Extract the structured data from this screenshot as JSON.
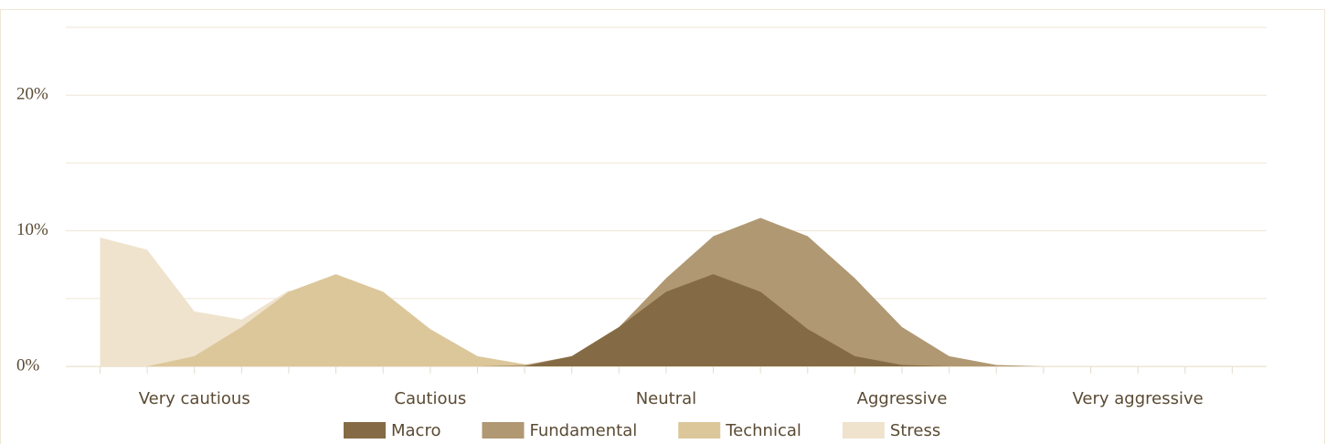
{
  "chart_data": {
    "type": "area",
    "categories": [
      null,
      null,
      "Very cautious",
      null,
      null,
      null,
      null,
      "Cautious",
      null,
      null,
      null,
      null,
      "Neutral",
      null,
      null,
      null,
      null,
      "Aggressive",
      null,
      null,
      null,
      null,
      "Very aggressive",
      null,
      null
    ],
    "series": [
      {
        "name": "Stress",
        "color": "#efe3cd",
        "values": [
          9.5,
          8.6,
          4.05,
          3.45,
          5.6,
          3,
          1,
          0,
          0,
          0,
          0,
          0,
          0,
          0,
          0,
          0,
          0,
          0,
          0,
          0,
          0,
          0,
          0,
          0,
          0
        ]
      },
      {
        "name": "Technical",
        "color": "#dcc79b",
        "values": [
          0,
          0,
          0.75,
          2.9,
          5.5,
          6.8,
          5.5,
          2.75,
          0.75,
          0.15,
          0,
          0,
          0,
          0,
          0,
          0,
          0,
          0,
          0,
          0,
          0,
          0,
          0,
          0,
          0
        ]
      },
      {
        "name": "Fundamental",
        "color": "#b09873",
        "values": [
          0,
          0,
          0,
          0,
          0,
          0,
          0,
          0,
          0,
          0.1,
          0.75,
          2.9,
          6.5,
          9.6,
          10.95,
          9.6,
          6.5,
          2.9,
          0.75,
          0.1,
          0,
          0,
          0,
          0,
          0
        ]
      },
      {
        "name": "Macro",
        "color": "#846b45",
        "values": [
          0,
          0,
          0,
          0,
          0,
          0,
          0,
          0,
          0,
          0,
          0.75,
          2.9,
          5.5,
          6.8,
          5.5,
          2.75,
          0.75,
          0.1,
          0,
          0,
          0,
          0,
          0,
          0,
          0
        ]
      }
    ],
    "legend_order": [
      3,
      2,
      1,
      0
    ],
    "ylim": [
      0,
      25
    ],
    "yticks": [
      {
        "value": 0,
        "label": "0%"
      },
      {
        "value": 10,
        "label": "10%"
      },
      {
        "value": 20,
        "label": "20%"
      }
    ],
    "minor_yticks": [
      5,
      15,
      25
    ],
    "grid": true
  }
}
